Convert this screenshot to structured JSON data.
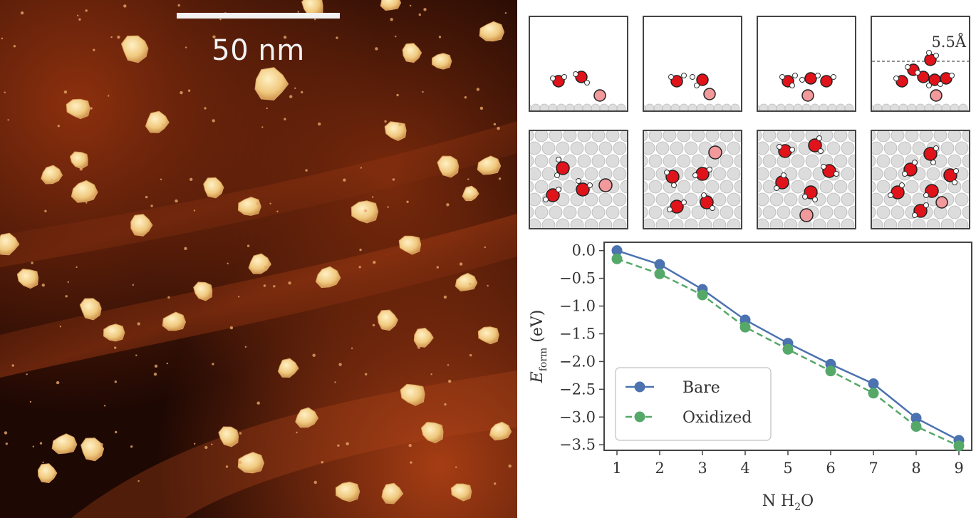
{
  "afm_image": {
    "scale_bar_label": "50 nm",
    "colors": {
      "background_dark": "#0d0401",
      "background_mid": "#5a1a08",
      "background_bright": "#a23a12",
      "particle": "#f0c97f"
    }
  },
  "snapshots": {
    "height_annotation": "5.5Å",
    "atom_colors": {
      "oxygen": "#e0131a",
      "hydrogen": "#ffffff",
      "surface_oxygen": "#f2999c",
      "substrate": "#d6d6d6"
    }
  },
  "chart_data": {
    "type": "line",
    "x": [
      1,
      2,
      3,
      4,
      5,
      6,
      7,
      8,
      9
    ],
    "xlabel": "N H2O",
    "ylabel": "E_form (eV)",
    "xlim": [
      0.7,
      9.3
    ],
    "ylim": [
      -3.6,
      0.15
    ],
    "xticks": [
      "1",
      "2",
      "3",
      "4",
      "5",
      "6",
      "7",
      "8",
      "9"
    ],
    "yticks": [
      "0.0",
      "-0.5",
      "-1.0",
      "-1.5",
      "-2.0",
      "-2.5",
      "-3.0",
      "-3.5"
    ],
    "grid": false,
    "legend_position": "lower-left",
    "series": [
      {
        "name": "Bare",
        "color": "#4c72b0",
        "style": "solid",
        "values": [
          0.0,
          -0.25,
          -0.7,
          -1.25,
          -1.67,
          -2.05,
          -2.4,
          -3.02,
          -3.42
        ]
      },
      {
        "name": "Oxidized",
        "color": "#55a868",
        "style": "dashed",
        "values": [
          -0.15,
          -0.42,
          -0.8,
          -1.38,
          -1.78,
          -2.17,
          -2.57,
          -3.17,
          -3.52
        ]
      }
    ]
  }
}
